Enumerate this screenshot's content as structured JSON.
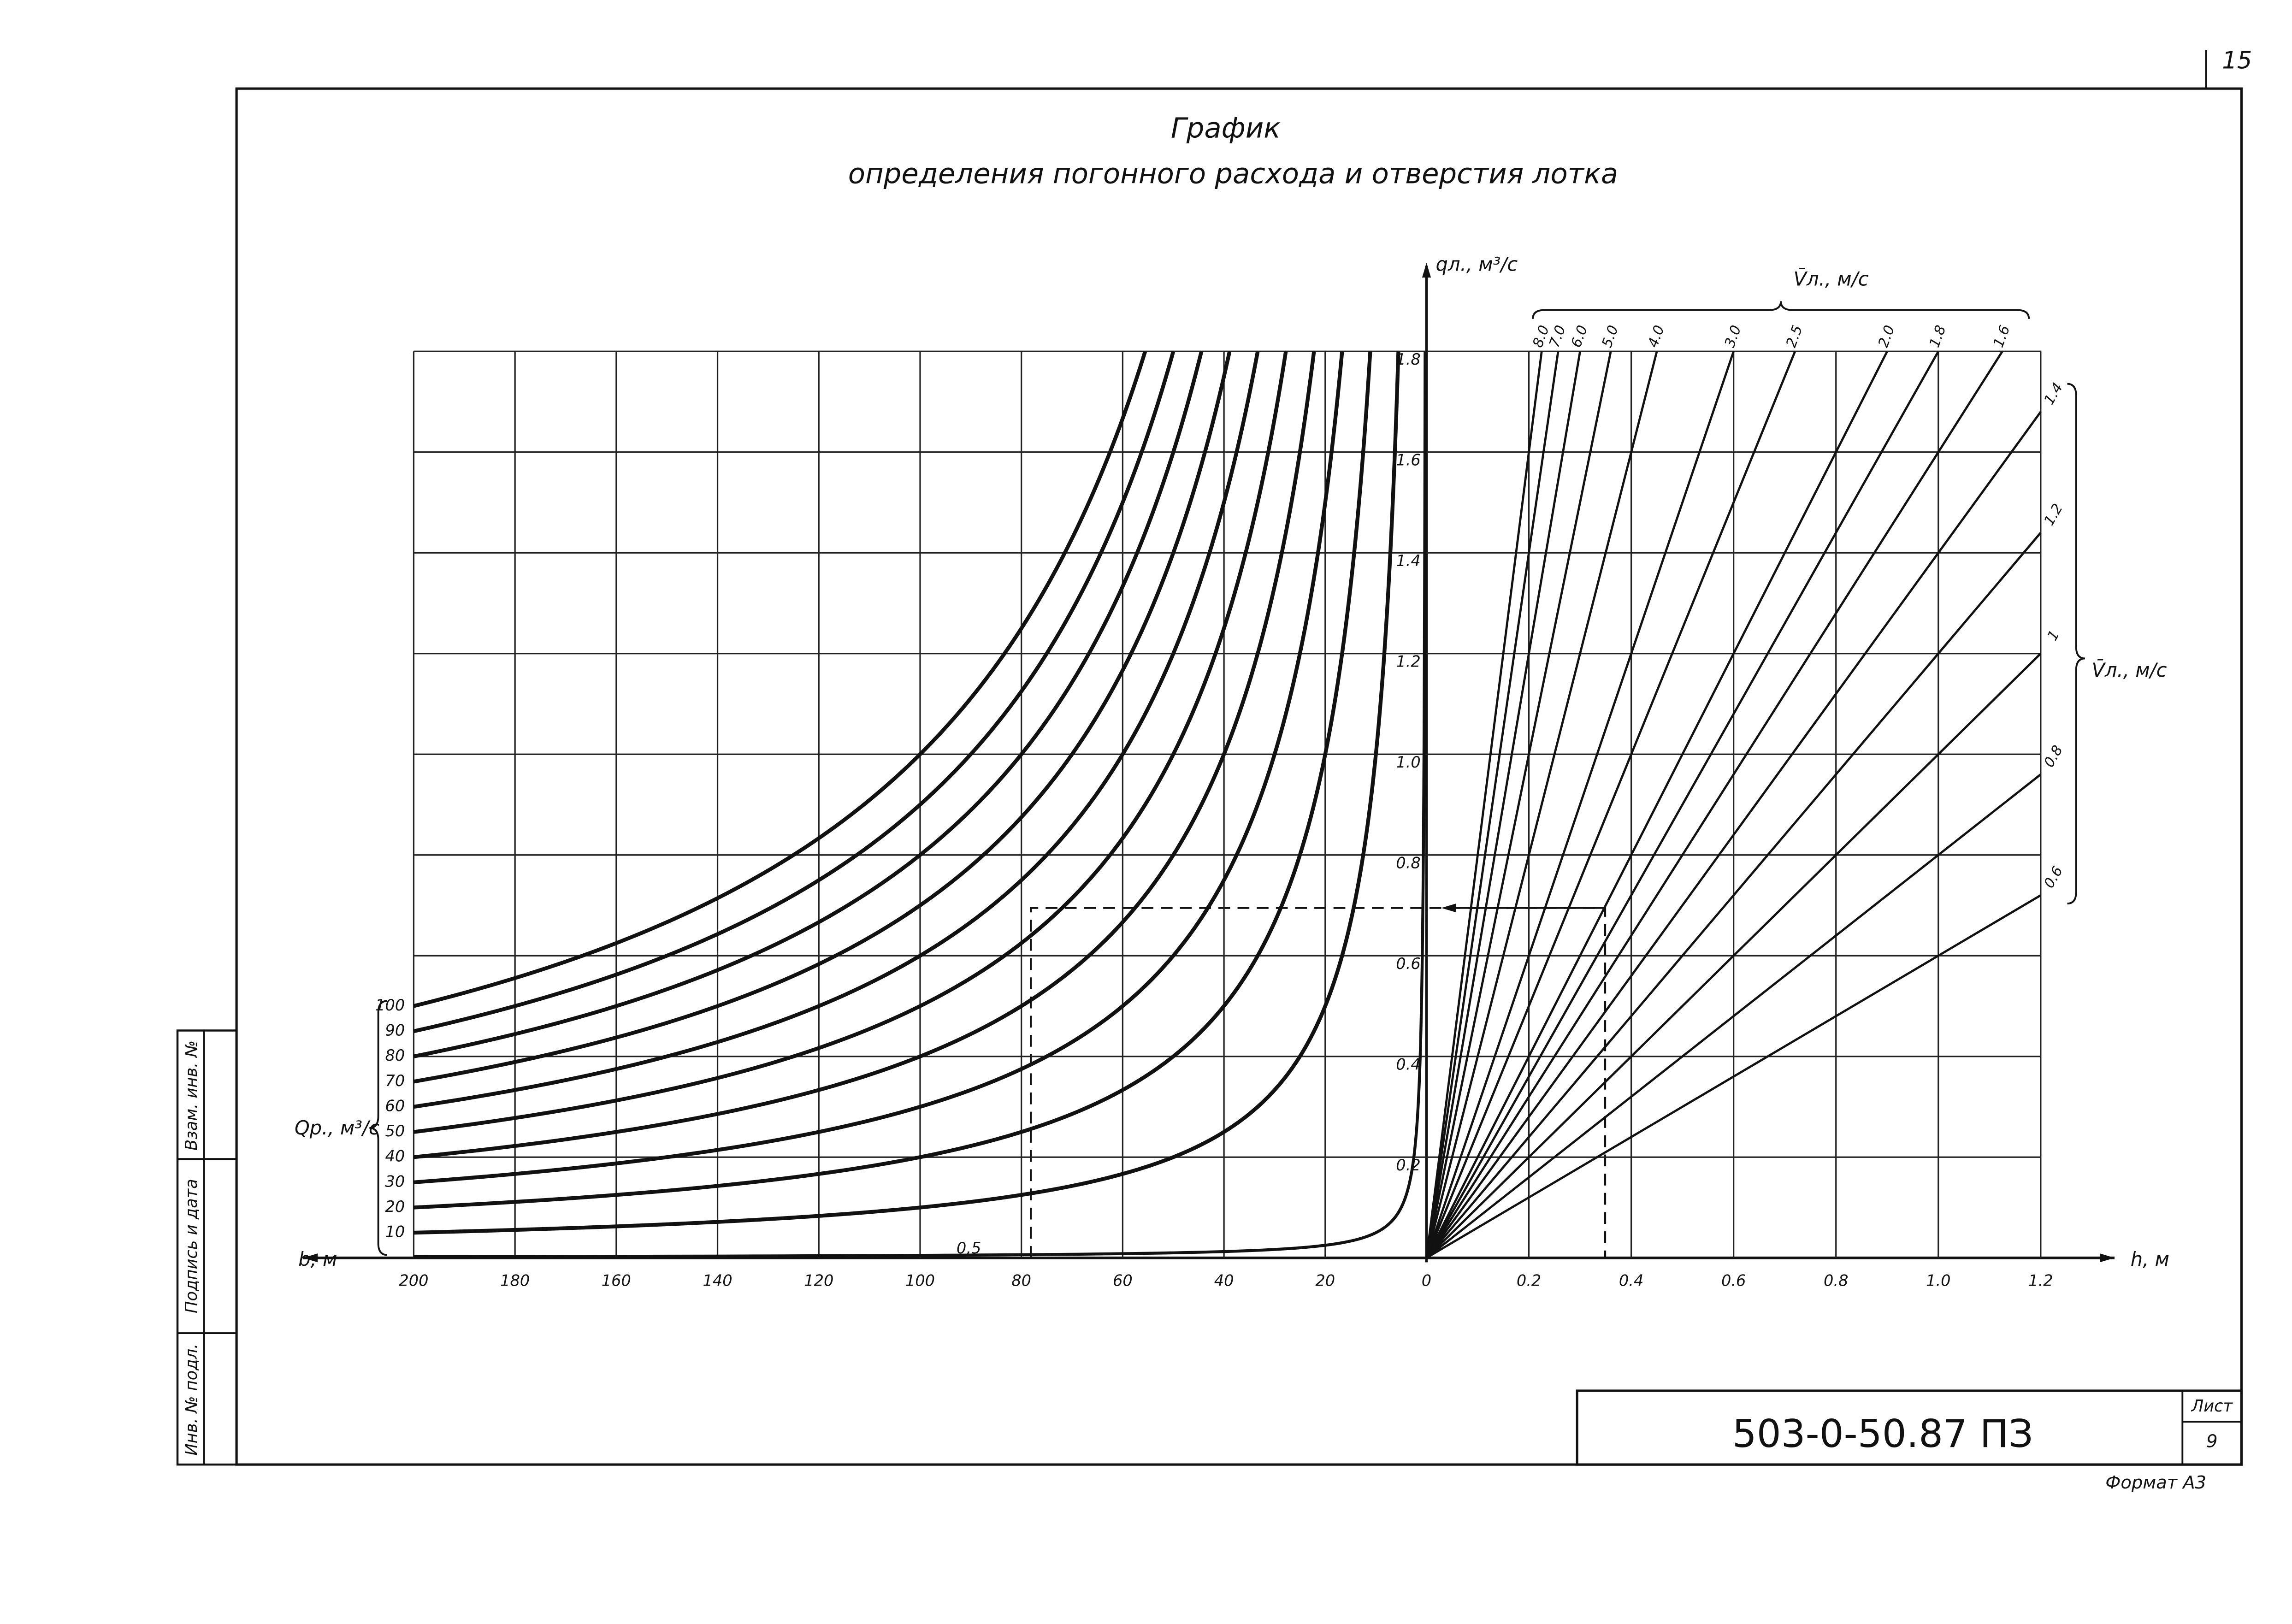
{
  "document": {
    "page_number": "15",
    "title": "График",
    "subtitle": "определения погонного расхода и отверстия лотка",
    "code": "503-0-50.87 ПЗ",
    "sheet_label": "Лист",
    "sheet": "9",
    "format": "Формат А3",
    "side_stamp": [
      "Инв. № подл.",
      "Подпись и дата",
      "Взам. инв. №"
    ]
  },
  "chart_data": [
    {
      "type": "hyperbola",
      "x_label": "b, м",
      "y_label": "qл., м³/с",
      "legend_label": "Qр., м³/с",
      "values": [
        0.5,
        10,
        20,
        30,
        40,
        50,
        60,
        70,
        80,
        90,
        100
      ],
      "value_labels": [
        "0,5",
        "10",
        "20",
        "30",
        "40",
        "50",
        "60",
        "70",
        "80",
        "90",
        "100"
      ],
      "xlim": [
        200,
        0
      ],
      "xticks": [
        200,
        180,
        160,
        140,
        120,
        100,
        80,
        60,
        40,
        20
      ],
      "ylim": [
        0,
        1.8
      ],
      "yticks": [
        0.2,
        0.4,
        0.6,
        0.8,
        {
          "value": 1,
          "label": "1.0"
        },
        1.2,
        1.4,
        1.6,
        1.8
      ],
      "grid": true
    },
    {
      "type": "ray",
      "x_label": "h, м",
      "legend_label": "V̄л., м/с",
      "values": [
        8,
        7,
        6,
        5,
        4,
        3,
        2.5,
        2,
        1.8,
        1.6,
        1.4,
        1.2,
        1,
        0.8,
        0.6
      ],
      "value_labels": [
        "8.0",
        "7.0",
        "6.0",
        "5.0",
        "4.0",
        "3.0",
        "2.5",
        "2.0",
        "1.8",
        "1.6",
        "1.4",
        "1.2",
        "1",
        "0.8",
        "0.6"
      ],
      "xlim": [
        0,
        1.2
      ],
      "xticks": [
        0,
        0.2,
        0.4,
        0.6,
        0.8,
        {
          "value": 1,
          "label": "1.0"
        },
        1.2
      ],
      "ylim": [
        0,
        1.8
      ],
      "grid": true
    }
  ]
}
